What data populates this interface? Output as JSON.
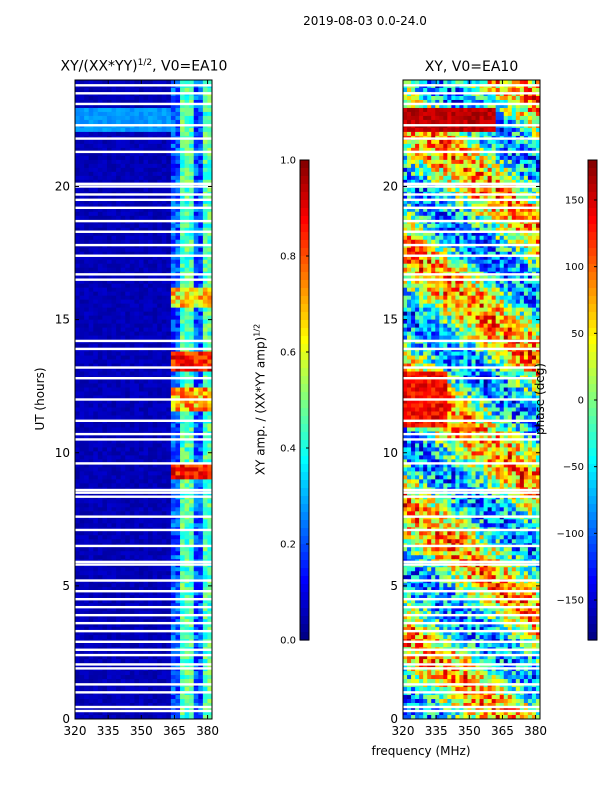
{
  "figure": {
    "suptitle": "2019-08-03 0.0-24.0",
    "colors": {
      "background": "#ffffff",
      "gap": "#ffffff"
    }
  },
  "chart_data": [
    {
      "type": "heatmap",
      "title": "XY/(XX*YY)",
      "title_exponent": "1/2",
      "title_suffix": ", V0=EA10",
      "xlabel": "",
      "ylabel": "UT (hours)",
      "xlim": [
        320,
        382
      ],
      "ylim": [
        0,
        24
      ],
      "x_ticks": [
        320,
        335,
        350,
        365,
        380
      ],
      "y_ticks": [
        0,
        5,
        10,
        15,
        20
      ],
      "colorbar": {
        "label": "XY amp. / (XX*YY amp)",
        "label_exponent": "1/2",
        "range": [
          0.0,
          1.0
        ],
        "ticks": [
          "0.0",
          "0.2",
          "0.4",
          "0.6",
          "0.8",
          "1.0"
        ],
        "colormap": "jet"
      },
      "description_value": "low amplitude (~0.05) below 364 MHz, bands of 0.2-0.9 in 364-382 MHz"
    },
    {
      "type": "heatmap",
      "title": "XY, V0=EA10",
      "xlabel": "frequency (MHz)",
      "ylabel": "",
      "xlim": [
        320,
        382
      ],
      "ylim": [
        0,
        24
      ],
      "x_ticks": [
        320,
        335,
        350,
        365,
        380
      ],
      "y_ticks": [
        0,
        5,
        10,
        15,
        20
      ],
      "colorbar": {
        "label": "phase (deg)",
        "range": [
          -180,
          180
        ],
        "ticks": [
          "150",
          "100",
          "50",
          "0",
          "−50",
          "−100",
          "−150"
        ],
        "tick_values": [
          150,
          100,
          50,
          0,
          -50,
          -100,
          -150
        ],
        "colormap": "jet"
      }
    }
  ]
}
